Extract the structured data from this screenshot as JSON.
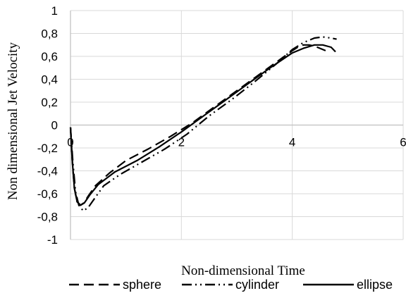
{
  "chart_data": {
    "type": "line",
    "title": "",
    "xlabel": "Non-dimensional Time",
    "ylabel": "Non dimensional Jet Velocity",
    "xlim": [
      0,
      6
    ],
    "ylim": [
      -1,
      1
    ],
    "x_ticks": [
      "0",
      "2",
      "4",
      "6"
    ],
    "y_ticks": [
      "-1",
      "-0,8",
      "-0,6",
      "-0,4",
      "-0,2",
      "0",
      "0,2",
      "0,4",
      "0,6",
      "0,8",
      "1"
    ],
    "grid": true,
    "legend_position": "bottom",
    "series": [
      {
        "name": "sphere",
        "dash": "dash",
        "color": "#000000",
        "points": [
          [
            0.0,
            -0.02
          ],
          [
            0.03,
            -0.3
          ],
          [
            0.07,
            -0.55
          ],
          [
            0.12,
            -0.67
          ],
          [
            0.18,
            -0.7
          ],
          [
            0.24,
            -0.68
          ],
          [
            0.32,
            -0.62
          ],
          [
            0.45,
            -0.53
          ],
          [
            0.7,
            -0.42
          ],
          [
            1.0,
            -0.31
          ],
          [
            1.4,
            -0.21
          ],
          [
            1.8,
            -0.1
          ],
          [
            2.2,
            0.02
          ],
          [
            2.6,
            0.16
          ],
          [
            3.0,
            0.3
          ],
          [
            3.4,
            0.44
          ],
          [
            3.8,
            0.58
          ],
          [
            4.0,
            0.65
          ],
          [
            4.1,
            0.68
          ],
          [
            4.2,
            0.7
          ],
          [
            4.3,
            0.7
          ],
          [
            4.4,
            0.69
          ],
          [
            4.5,
            0.67
          ],
          [
            4.6,
            0.65
          ]
        ]
      },
      {
        "name": "cylinder",
        "dash": "dashdotdot",
        "color": "#000000",
        "points": [
          [
            0.0,
            -0.02
          ],
          [
            0.04,
            -0.3
          ],
          [
            0.09,
            -0.58
          ],
          [
            0.15,
            -0.7
          ],
          [
            0.23,
            -0.75
          ],
          [
            0.32,
            -0.72
          ],
          [
            0.45,
            -0.63
          ],
          [
            0.6,
            -0.53
          ],
          [
            0.9,
            -0.43
          ],
          [
            1.3,
            -0.32
          ],
          [
            1.7,
            -0.21
          ],
          [
            2.1,
            -0.08
          ],
          [
            2.5,
            0.08
          ],
          [
            2.9,
            0.22
          ],
          [
            3.3,
            0.37
          ],
          [
            3.7,
            0.53
          ],
          [
            4.0,
            0.66
          ],
          [
            4.2,
            0.72
          ],
          [
            4.4,
            0.76
          ],
          [
            4.55,
            0.77
          ],
          [
            4.7,
            0.76
          ],
          [
            4.8,
            0.75
          ]
        ]
      },
      {
        "name": "ellipse",
        "dash": "solid",
        "color": "#000000",
        "points": [
          [
            0.0,
            -0.02
          ],
          [
            0.03,
            -0.3
          ],
          [
            0.07,
            -0.55
          ],
          [
            0.12,
            -0.67
          ],
          [
            0.18,
            -0.7
          ],
          [
            0.25,
            -0.68
          ],
          [
            0.35,
            -0.61
          ],
          [
            0.5,
            -0.52
          ],
          [
            0.8,
            -0.41
          ],
          [
            1.2,
            -0.31
          ],
          [
            1.6,
            -0.19
          ],
          [
            2.0,
            -0.06
          ],
          [
            2.4,
            0.08
          ],
          [
            2.8,
            0.22
          ],
          [
            3.2,
            0.36
          ],
          [
            3.6,
            0.5
          ],
          [
            4.0,
            0.63
          ],
          [
            4.2,
            0.67
          ],
          [
            4.4,
            0.7
          ],
          [
            4.55,
            0.7
          ],
          [
            4.7,
            0.68
          ],
          [
            4.78,
            0.64
          ]
        ]
      }
    ]
  }
}
